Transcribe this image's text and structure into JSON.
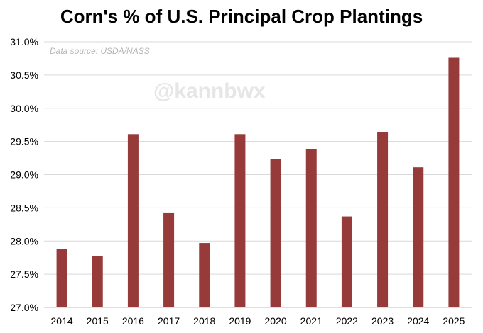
{
  "title": "Corn's % of U.S. Principal Crop Plantings",
  "source_note": "Data source: USDA/NASS",
  "watermark": "@kannbwx",
  "colors": {
    "bar": "#963a3a",
    "grid": "#d9d9d9",
    "axis": "#bfbfbf"
  },
  "chart_data": {
    "type": "bar",
    "title": "Corn's % of U.S. Principal Crop Plantings",
    "xlabel": "",
    "ylabel": "",
    "categories": [
      "2014",
      "2015",
      "2016",
      "2017",
      "2018",
      "2019",
      "2020",
      "2021",
      "2022",
      "2023",
      "2024",
      "2025"
    ],
    "values": [
      27.88,
      27.77,
      29.61,
      28.43,
      27.97,
      29.61,
      29.23,
      29.38,
      28.37,
      29.64,
      29.11,
      30.76
    ],
    "ylim": [
      27.0,
      31.0
    ],
    "ytick_labels": [
      "27.0%",
      "27.5%",
      "28.0%",
      "28.5%",
      "29.0%",
      "29.5%",
      "30.0%",
      "30.5%",
      "31.0%"
    ],
    "grid": "horizontal",
    "legend": "none"
  }
}
